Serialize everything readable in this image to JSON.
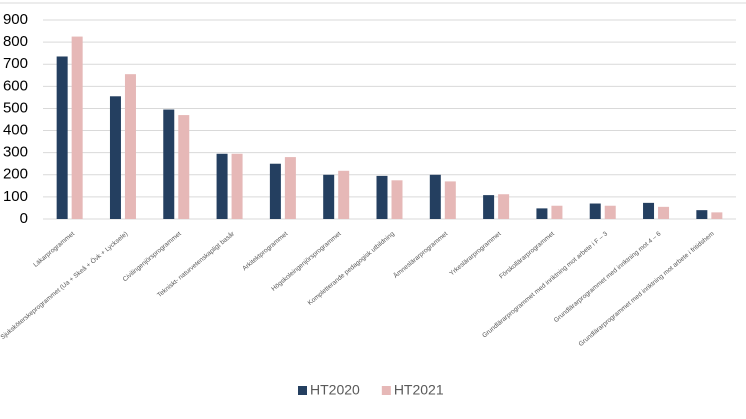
{
  "chart_data": {
    "type": "bar",
    "categories": [
      "Läkarprogrammet",
      "Sjuksköterskeprogrammet (Ua + Skeå + Övk + Lycksele)",
      "Civilingenjörsprogrammet",
      "Tekniskt- naturvetenskapligt basår",
      "Arkitektprogrammet",
      "Högskoleingenjörsprogrammet",
      "Kompletterande pedagogisk utbildning",
      "Ämneslärarprogrammet",
      "Yrkeslärarprogrammet",
      "Förskollärarprogrammet",
      "Grundlärarprogrammet med inriktning mot arbete i F – 3",
      "Grundlärarprogrammet med inriktning mot 4 – 6",
      "Grundlärarprogrammet med inriktning mot arbete i fritidshem"
    ],
    "series": [
      {
        "name": "HT2020",
        "color": "#243f60",
        "values": [
          735,
          555,
          495,
          295,
          250,
          200,
          195,
          200,
          108,
          48,
          70,
          73,
          40
        ]
      },
      {
        "name": "HT2021",
        "color": "#e6b8b7",
        "values": [
          825,
          655,
          470,
          295,
          280,
          218,
          175,
          170,
          112,
          60,
          60,
          55,
          30
        ]
      }
    ],
    "ylim": [
      0,
      900
    ],
    "yticks": [
      0,
      100,
      200,
      300,
      400,
      500,
      600,
      700,
      800,
      900
    ],
    "grid": true,
    "legend": "bottom"
  }
}
